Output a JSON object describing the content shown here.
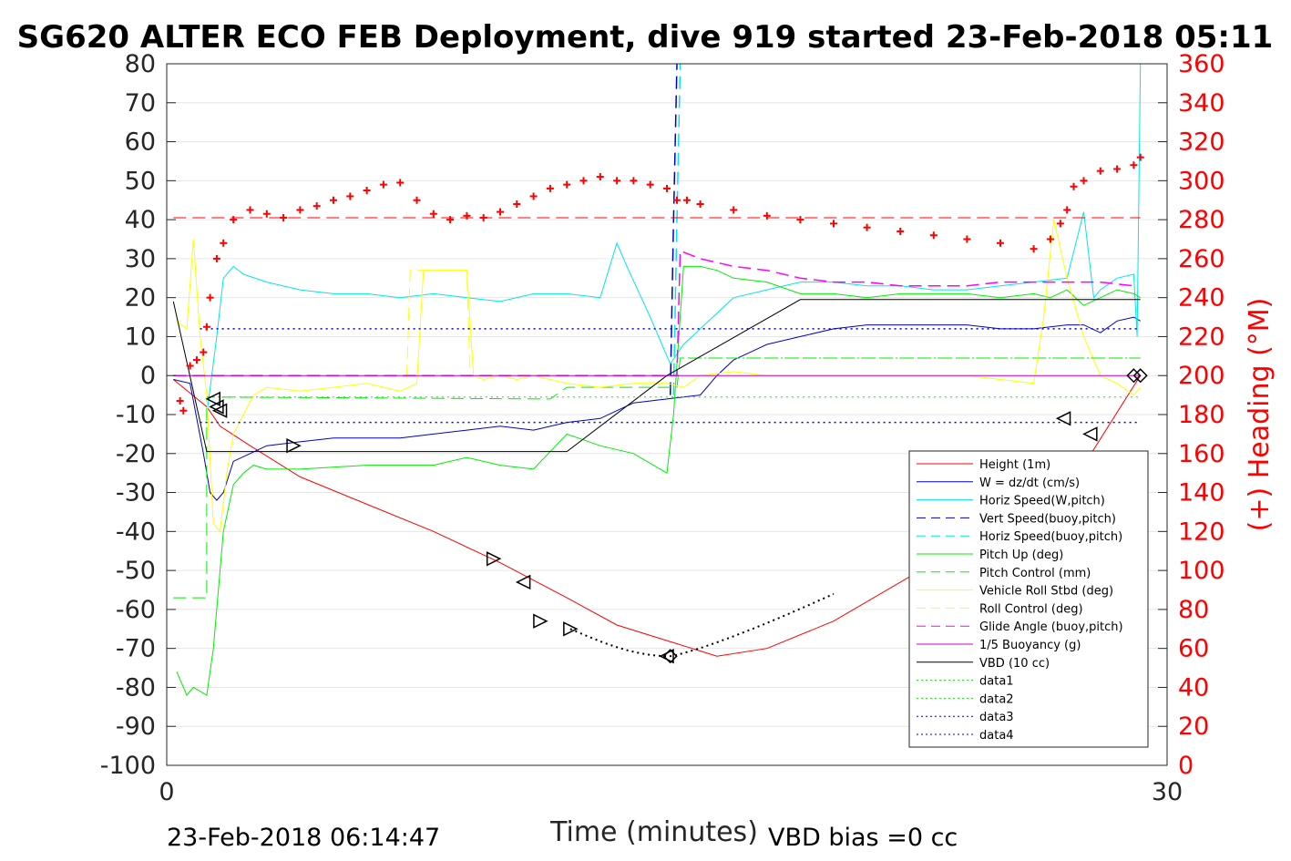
{
  "chart_data": {
    "type": "line",
    "title": "SG620 ALTER ECO FEB Deployment, dive 919 started 23-Feb-2018 05:11",
    "xlabel": "Time (minutes)",
    "ylabel_right": "(+) Heading (°M)",
    "xlim": [
      0,
      30
    ],
    "ylim_left": [
      -100,
      80
    ],
    "ylim_right": [
      0,
      360
    ],
    "x_ticks": [
      "0",
      "30"
    ],
    "y_ticks_left": [
      "80",
      "70",
      "60",
      "50",
      "40",
      "30",
      "20",
      "10",
      "0",
      "-10",
      "-20",
      "-30",
      "-40",
      "-50",
      "-60",
      "-70",
      "-80",
      "-90",
      "-100"
    ],
    "y_ticks_right": [
      "360",
      "340",
      "320",
      "300",
      "280",
      "260",
      "240",
      "220",
      "200",
      "180",
      "160",
      "140",
      "120",
      "100",
      "80",
      "60",
      "40",
      "20",
      "0"
    ],
    "footer_left": "23-Feb-2018 06:14:47",
    "footer_right": "VBD bias =0 cc",
    "grid": true,
    "legend_position": "bottom-right",
    "legend": [
      {
        "name": "Height (1m)",
        "color": "#ff0000",
        "dash": "solid"
      },
      {
        "name": "W = dz/dt (cm/s)",
        "color": "#0000cc",
        "dash": "solid"
      },
      {
        "name": "Horiz Speed(W,pitch)",
        "color": "#00e5ee",
        "dash": "solid"
      },
      {
        "name": "Vert Speed(buoy,pitch)",
        "color": "#0000cc",
        "dash": "dashed"
      },
      {
        "name": "Horiz Speed(buoy,pitch)",
        "color": "#00e5ee",
        "dash": "dashed"
      },
      {
        "name": "Pitch Up (deg)",
        "color": "#00ee00",
        "dash": "solid"
      },
      {
        "name": "Pitch Control (mm)",
        "color": "#00ee00",
        "dash": "dashed"
      },
      {
        "name": "Vehicle Roll Stbd (deg)",
        "color": "#ffff00",
        "dash": "solid"
      },
      {
        "name": "Roll Control (deg)",
        "color": "#ffff00",
        "dash": "dashed"
      },
      {
        "name": "Glide Angle (buoy,pitch)",
        "color": "#ff00ff",
        "dash": "dashed"
      },
      {
        "name": "1/5 Buoyancy (g)",
        "color": "#cc00cc",
        "dash": "solid"
      },
      {
        "name": "VBD (10 cc)",
        "color": "#000000",
        "dash": "solid"
      },
      {
        "name": "data1",
        "color": "#00ee00",
        "dash": "dotted"
      },
      {
        "name": "data2",
        "color": "#00ee00",
        "dash": "dotted"
      },
      {
        "name": "data3",
        "color": "#0000cc",
        "dash": "dotted"
      },
      {
        "name": "data4",
        "color": "#0000cc",
        "dash": "dotted"
      }
    ],
    "series": [
      {
        "key": "height",
        "color": "#ff0000",
        "dash": "solid",
        "width": 1,
        "x": [
          0.2,
          1.2,
          1.6,
          2.5,
          4,
          6,
          8,
          10,
          12,
          13.5,
          15,
          16.5,
          18,
          20,
          23,
          26,
          27.5,
          29.2
        ],
        "y": [
          -1,
          -8,
          -13,
          -18,
          -26,
          -33,
          -40,
          -48,
          -57,
          -64,
          -68,
          -72,
          -70,
          -63,
          -48,
          -32,
          -23,
          0
        ]
      },
      {
        "key": "w",
        "color": "#0000cc",
        "dash": "solid",
        "width": 1,
        "x": [
          0.2,
          0.7,
          1.1,
          1.3,
          1.5,
          1.7,
          2,
          2.5,
          3,
          4,
          5,
          6,
          7,
          8,
          9,
          10,
          11,
          12,
          13,
          13.5,
          14,
          15,
          16,
          16.5,
          17,
          17.5,
          18,
          19,
          20,
          21,
          22,
          23,
          24,
          25,
          26,
          27,
          27.5,
          28,
          28.5,
          29,
          29.2
        ],
        "y": [
          -1,
          -2,
          -20,
          -30,
          -32,
          -30,
          -22,
          -20,
          -18,
          -17,
          -16,
          -16,
          -16,
          -15,
          -14,
          -13,
          -14,
          -12,
          -11,
          -9,
          -7,
          -6,
          -5,
          0,
          4,
          6,
          8,
          10,
          12,
          13,
          13,
          13,
          13,
          12,
          12,
          13,
          13,
          11,
          14,
          15,
          14
        ]
      },
      {
        "key": "vert_buoy",
        "color": "#0000cc",
        "dash": "dashed",
        "width": 1.5,
        "x": [
          15.1,
          15.2,
          15.3
        ],
        "y": [
          -5,
          40,
          80
        ]
      },
      {
        "key": "horiz_w",
        "color": "#00e5ee",
        "dash": "solid",
        "width": 1,
        "x": [
          1.2,
          1.5,
          1.7,
          2,
          2.3,
          3,
          4,
          5,
          6,
          7,
          8,
          9,
          10,
          11,
          12,
          13,
          13.5,
          13.8,
          14.5,
          15,
          15.1,
          15.5,
          16,
          17,
          18,
          19,
          20,
          21,
          22,
          23,
          24,
          25,
          26,
          27,
          27.5,
          27.8,
          28,
          28.5,
          29,
          29.1,
          29.2
        ],
        "y": [
          -10,
          10,
          25,
          28,
          26,
          24,
          22,
          21,
          21,
          20,
          21,
          20,
          19,
          21,
          21,
          20,
          34,
          28,
          15,
          5,
          3,
          8,
          12,
          20,
          22,
          24,
          24,
          23,
          23,
          22,
          22,
          23,
          24,
          25,
          42,
          20,
          22,
          25,
          26,
          10,
          80
        ]
      },
      {
        "key": "horiz_buoy",
        "color": "#00e5ee",
        "dash": "dashed",
        "width": 1.5,
        "x": [
          15.2,
          15.3,
          15.4
        ],
        "y": [
          -5,
          40,
          80
        ]
      },
      {
        "key": "pitch_up",
        "color": "#00ee00",
        "dash": "solid",
        "width": 1,
        "x": [
          0.3,
          0.6,
          0.8,
          1,
          1.2,
          1.4,
          1.7,
          2,
          2.3,
          2.6,
          3,
          4,
          6,
          8,
          9,
          10,
          11,
          12,
          13,
          14,
          15,
          15.2,
          15.5,
          16,
          16.5,
          17,
          18,
          19,
          20,
          21,
          22,
          23,
          24,
          25,
          26,
          26.5,
          27,
          27.5,
          28,
          28.5,
          29,
          29.2
        ],
        "y": [
          -76,
          -82,
          -80,
          -81,
          -82,
          -70,
          -40,
          -28,
          -25,
          -23,
          -24,
          -24,
          -23,
          -23,
          -21,
          -23,
          -24,
          -15,
          -18,
          -20,
          -25,
          -10,
          28,
          28,
          27,
          25,
          24,
          21,
          21,
          20,
          21,
          21,
          21,
          20,
          21,
          20,
          22,
          18,
          20,
          22,
          21,
          20
        ]
      },
      {
        "key": "pitch_ctrl",
        "color": "#00ee00",
        "dash": "dashed",
        "width": 1,
        "x": [
          0.2,
          1.2,
          1.2,
          1.5,
          11.5,
          12,
          15,
          15.3,
          15.4,
          29.2
        ],
        "y": [
          -57,
          -57,
          -5.5,
          -5.5,
          -6,
          -3,
          -3,
          -3,
          4.5,
          4.5
        ]
      },
      {
        "key": "roll",
        "color": "#ffff00",
        "dash": "solid",
        "width": 1,
        "x": [
          0.3,
          0.6,
          0.8,
          1,
          1.2,
          1.4,
          1.6,
          1.8,
          2,
          2.3,
          2.6,
          3,
          4,
          5,
          6,
          7,
          7.5,
          7.7,
          8,
          8.5,
          9,
          9.2,
          9.5,
          10,
          10.5,
          11,
          11.5,
          12,
          13,
          14,
          15,
          15.5,
          16,
          17,
          18,
          19,
          20,
          21,
          22,
          23,
          24,
          25,
          26,
          26.3,
          26.6,
          27,
          27.5,
          28,
          28.5,
          29,
          29.2
        ],
        "y": [
          14,
          12,
          35,
          10,
          -5,
          -38,
          -40,
          -25,
          -15,
          -10,
          -5,
          -3,
          -4,
          -3,
          -2,
          -4,
          -2,
          27,
          27,
          27,
          27,
          0,
          -1,
          0,
          -1,
          0,
          -1,
          -2,
          -3,
          -2,
          -2,
          -3,
          0,
          1,
          0,
          0,
          0,
          0,
          0,
          0,
          0,
          -1,
          -2,
          15,
          40,
          25,
          10,
          0,
          -2,
          -5,
          -3
        ]
      },
      {
        "key": "roll_ctrl",
        "color": "#ffff00",
        "dash": "dashed",
        "width": 1,
        "x": [
          7.2,
          7.3,
          9.0,
          9.1
        ],
        "y": [
          -0.5,
          27,
          27,
          -0.5
        ]
      },
      {
        "key": "glide",
        "color": "#ff00ff",
        "dash": "dashed",
        "width": 1.5,
        "x": [
          0.2,
          15.3,
          15.4,
          16,
          17,
          18,
          19,
          20,
          21,
          22,
          23,
          24,
          25,
          26,
          27,
          28,
          29
        ],
        "y": [
          0,
          0,
          32,
          30,
          28,
          27,
          25,
          24,
          24,
          23,
          23,
          23,
          24,
          24,
          24,
          24,
          23
        ]
      },
      {
        "key": "buoy5",
        "color": "#cc00cc",
        "dash": "solid",
        "width": 1,
        "x": [
          0.2,
          29.2
        ],
        "y": [
          0,
          0
        ]
      },
      {
        "key": "vbd",
        "color": "#000000",
        "dash": "solid",
        "width": 1,
        "x": [
          0.2,
          1.2,
          12,
          15,
          19,
          20,
          29.2
        ],
        "y": [
          19,
          -19.5,
          -19.5,
          0,
          19.5,
          19.5,
          19.5
        ]
      },
      {
        "key": "data1",
        "color": "#00ee00",
        "dash": "dotted",
        "width": 1,
        "x": [
          1.2,
          29.2
        ],
        "y": [
          -5.5,
          -5.5
        ]
      },
      {
        "key": "data2",
        "color": "#00ee00",
        "dash": "dotted",
        "width": 1,
        "x": [
          15.3,
          29.2
        ],
        "y": [
          4.5,
          4.5
        ]
      },
      {
        "key": "data3",
        "color": "#0000cc",
        "dash": "dotted",
        "width": 1.5,
        "x": [
          1,
          29.2
        ],
        "y": [
          12,
          12
        ]
      },
      {
        "key": "data4",
        "color": "#0000cc",
        "dash": "dotted",
        "width": 1.5,
        "x": [
          1,
          29.2
        ],
        "y": [
          -12,
          -12
        ]
      },
      {
        "key": "heading_ref",
        "color": "#ff0000",
        "dash": "dashed",
        "width": 1,
        "x": [
          0.2,
          29.2
        ],
        "y": [
          40.5,
          40.5
        ]
      }
    ],
    "heading": {
      "axis": "right",
      "color": "#ff0000",
      "marker": "+",
      "x": [
        0.4,
        0.5,
        0.7,
        0.9,
        1.1,
        1.2,
        1.3,
        1.5,
        1.7,
        2,
        2.5,
        3,
        3.5,
        4,
        4.5,
        5,
        5.5,
        6,
        6.5,
        7,
        7.5,
        8,
        8.5,
        9,
        9.5,
        10,
        10.5,
        11,
        11.5,
        12,
        12.5,
        13,
        13.5,
        14,
        14.5,
        15,
        15.3,
        15.6,
        16,
        17,
        18,
        19,
        20,
        21,
        22,
        23,
        24,
        25,
        26,
        26.5,
        26.8,
        27,
        27.2,
        27.5,
        28,
        28.5,
        29,
        29.2
      ],
      "y": [
        187,
        182,
        205,
        208,
        212,
        225,
        240,
        260,
        268,
        280,
        285,
        283,
        281,
        285,
        287,
        290,
        292,
        295,
        298,
        299,
        290,
        283,
        280,
        282,
        281,
        284,
        288,
        292,
        296,
        298,
        300,
        302,
        300,
        300,
        298,
        296,
        290,
        290,
        288,
        285,
        282,
        280,
        278,
        276,
        274,
        272,
        270,
        268,
        265,
        270,
        278,
        285,
        297,
        300,
        305,
        306,
        308,
        312
      ]
    },
    "annotations": {
      "triangles_right": [
        [
          3.8,
          -18
        ],
        [
          9.8,
          -47
        ],
        [
          11.2,
          -63
        ],
        [
          12.1,
          -65
        ]
      ],
      "triangles_left": [
        [
          1.4,
          -6
        ],
        [
          1.5,
          -8
        ],
        [
          1.6,
          -9
        ],
        [
          10.7,
          -53
        ],
        [
          15,
          -72
        ],
        [
          26.9,
          -11
        ],
        [
          27.7,
          -15
        ]
      ],
      "diamonds": [
        [
          29.0,
          0
        ],
        [
          29.2,
          0
        ],
        [
          15.1,
          -72
        ]
      ],
      "dive_dots": {
        "x_start": 12.1,
        "x_end": 20,
        "y_start": -65,
        "y_mid": -72,
        "mid_x": 15.1,
        "y_end": -56
      }
    }
  }
}
